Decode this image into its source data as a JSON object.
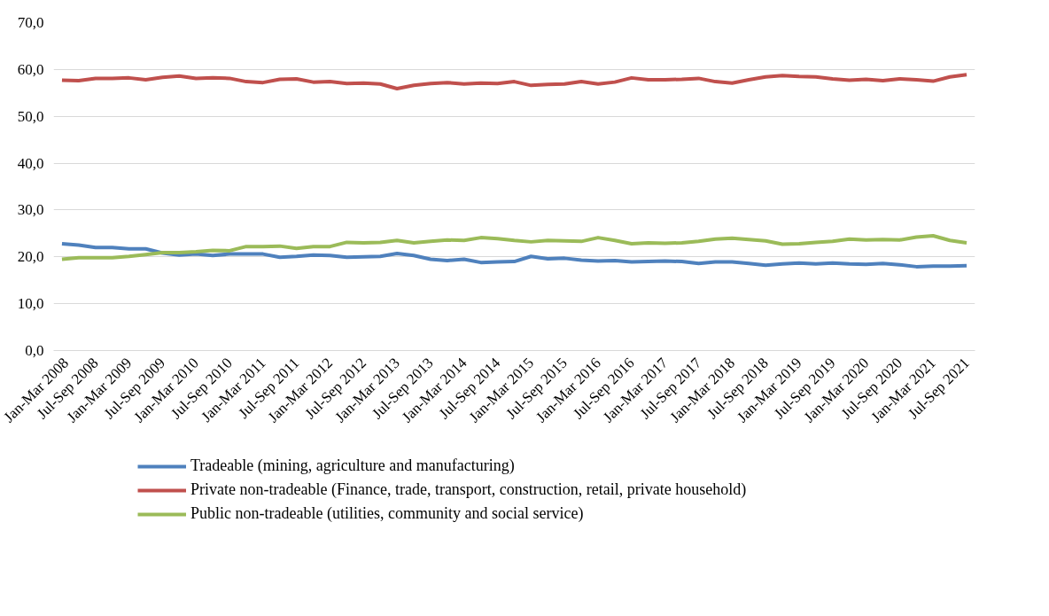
{
  "chart_data": {
    "type": "line",
    "categories": [
      "Jan-Mar 2008",
      null,
      "Jul-Sep 2008",
      null,
      "Jan-Mar 2009",
      null,
      "Jul-Sep 2009",
      null,
      "Jan-Mar 2010",
      null,
      "Jul-Sep 2010",
      null,
      "Jan-Mar 2011",
      null,
      "Jul-Sep 2011",
      null,
      "Jan-Mar 2012",
      null,
      "Jul-Sep 2012",
      null,
      "Jan-Mar 2013",
      null,
      "Jul-Sep 2013",
      null,
      "Jan-Mar 2014",
      null,
      "Jul-Sep 2014",
      null,
      "Jan-Mar 2015",
      null,
      "Jul-Sep 2015",
      null,
      "Jan-Mar 2016",
      null,
      "Jul-Sep 2016",
      null,
      "Jan-Mar 2017",
      null,
      "Jul-Sep 2017",
      null,
      "Jan-Mar 2018",
      null,
      "Jul-Sep 2018",
      null,
      "Jan-Mar 2019",
      null,
      "Jul-Sep 2019",
      null,
      "Jan-Mar 2020",
      null,
      "Jul-Sep 2020",
      null,
      "Jan-Mar 2021",
      null,
      "Jul-Sep 2021"
    ],
    "series": [
      {
        "name": "Tradeable (mining, agriculture and manufacturing)",
        "color": "#4f81bd",
        "values": [
          22.8,
          22.5,
          22.0,
          22.0,
          21.7,
          21.7,
          20.8,
          20.4,
          20.6,
          20.3,
          20.6,
          20.6,
          20.6,
          19.9,
          20.1,
          20.4,
          20.3,
          19.9,
          20.0,
          20.1,
          20.7,
          20.3,
          19.5,
          19.2,
          19.5,
          18.8,
          18.9,
          19.0,
          20.1,
          19.6,
          19.7,
          19.3,
          19.1,
          19.2,
          18.9,
          19.0,
          19.1,
          19.0,
          18.6,
          18.9,
          18.9,
          18.6,
          18.2,
          18.5,
          18.7,
          18.5,
          18.7,
          18.5,
          18.4,
          18.6,
          18.3,
          17.9,
          18.0,
          18.0,
          18.1
        ]
      },
      {
        "name": "Private non-tradeable (Finance, trade, transport, construction, retail, private household)",
        "color": "#c0504d",
        "values": [
          57.7,
          57.6,
          58.1,
          58.1,
          58.2,
          57.8,
          58.3,
          58.6,
          58.1,
          58.2,
          58.1,
          57.4,
          57.2,
          57.9,
          58.0,
          57.3,
          57.4,
          57.0,
          57.1,
          56.9,
          55.9,
          56.6,
          57.0,
          57.2,
          56.9,
          57.1,
          57.0,
          57.4,
          56.6,
          56.8,
          56.9,
          57.4,
          56.9,
          57.3,
          58.2,
          57.8,
          57.8,
          57.9,
          58.1,
          57.4,
          57.1,
          57.8,
          58.4,
          58.7,
          58.5,
          58.4,
          58.0,
          57.7,
          57.9,
          57.6,
          58.0,
          57.8,
          57.5,
          58.4,
          58.9
        ]
      },
      {
        "name": "Public non-tradeable (utilities, community and social service)",
        "color": "#9bbb59",
        "values": [
          19.5,
          19.8,
          19.8,
          19.8,
          20.1,
          20.5,
          20.9,
          20.9,
          21.1,
          21.4,
          21.3,
          22.2,
          22.2,
          22.3,
          21.8,
          22.2,
          22.2,
          23.1,
          23.0,
          23.1,
          23.5,
          23.0,
          23.3,
          23.6,
          23.5,
          24.1,
          23.9,
          23.5,
          23.2,
          23.5,
          23.4,
          23.3,
          24.1,
          23.5,
          22.8,
          23.0,
          22.9,
          23.0,
          23.3,
          23.8,
          24.0,
          23.7,
          23.4,
          22.7,
          22.8,
          23.1,
          23.3,
          23.8,
          23.6,
          23.7,
          23.6,
          24.2,
          24.5,
          23.5,
          23.0
        ]
      }
    ],
    "ylim": [
      0,
      70
    ],
    "yticks": [
      {
        "value": 0,
        "label": "0,0"
      },
      {
        "value": 10,
        "label": "10,0"
      },
      {
        "value": 20,
        "label": "20,0"
      },
      {
        "value": 30,
        "label": "30,0"
      },
      {
        "value": 40,
        "label": "40,0"
      },
      {
        "value": 50,
        "label": "50,0"
      },
      {
        "value": 60,
        "label": "60,0"
      },
      {
        "value": 70,
        "label": "70,0"
      }
    ],
    "grid": "y",
    "legend": "bottom",
    "marker": "none",
    "line_style": "solid"
  }
}
